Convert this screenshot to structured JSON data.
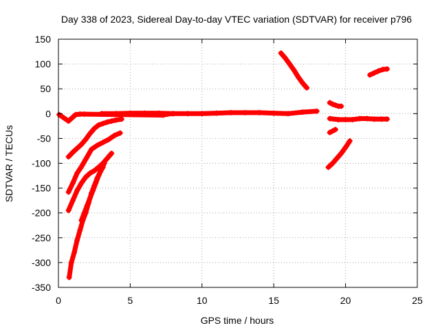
{
  "chart_data": {
    "type": "scatter",
    "title": "Day 338 of 2023, Sidereal Day-to-day VTEC variation (SDTVAR) for receiver p796",
    "xlabel": "GPS time / hours",
    "ylabel": "SDTVAR / TECUs",
    "xlim": [
      0,
      25
    ],
    "ylim": [
      -350,
      150
    ],
    "xticks": [
      0,
      5,
      10,
      15,
      20,
      25
    ],
    "yticks": [
      -350,
      -300,
      -250,
      -200,
      -150,
      -100,
      -50,
      0,
      50,
      100,
      150
    ],
    "grid": true,
    "marker": "+",
    "color": "#ff0000",
    "series": [
      {
        "name": "arc-near-zero-main",
        "x": [
          3.0,
          4.0,
          5.0,
          6.0,
          7.0,
          8.0,
          9.0,
          10.0,
          11.0,
          12.0,
          13.0,
          14.0,
          15.0,
          16.0,
          17.0,
          18.0
        ],
        "y": [
          0,
          0,
          1,
          1,
          1,
          0,
          0,
          0,
          1,
          2,
          2,
          2,
          1,
          0,
          3,
          5
        ]
      },
      {
        "name": "arc-near-zero-late",
        "x": [
          18.9,
          19.5,
          20.0,
          20.5,
          21.0,
          21.5,
          22.0,
          22.5,
          22.9
        ],
        "y": [
          -10,
          -12,
          -12,
          -12,
          -10,
          -10,
          -11,
          -11,
          -11
        ]
      },
      {
        "name": "arc-rise-1",
        "x": [
          0.7,
          1.0,
          1.3,
          1.6,
          1.9,
          2.2,
          2.5,
          2.8,
          3.1,
          3.4,
          3.7,
          4.0,
          4.4
        ],
        "y": [
          -87,
          -78,
          -70,
          -62,
          -52,
          -40,
          -30,
          -23,
          -20,
          -17,
          -15,
          -13,
          -11
        ]
      },
      {
        "name": "arc-rise-2",
        "x": [
          0.7,
          1.0,
          1.3,
          1.6,
          1.9,
          2.3,
          2.7,
          3.1,
          3.5,
          3.9,
          4.3
        ],
        "y": [
          -158,
          -140,
          -120,
          -107,
          -92,
          -72,
          -64,
          -58,
          -52,
          -44,
          -39
        ]
      },
      {
        "name": "arc-rise-3",
        "x": [
          0.7,
          1.0,
          1.3,
          1.6,
          1.9,
          2.2,
          2.5,
          2.8,
          3.1,
          3.4,
          3.7
        ],
        "y": [
          -195,
          -175,
          -155,
          -140,
          -128,
          -120,
          -115,
          -108,
          -100,
          -90,
          -80
        ]
      },
      {
        "name": "arc-rise-4",
        "x": [
          0.75,
          0.9,
          1.1,
          1.3,
          1.5,
          1.7,
          1.9,
          2.1,
          2.3,
          2.5,
          2.7,
          2.9,
          3.1
        ],
        "y": [
          -330,
          -300,
          -280,
          -255,
          -235,
          -215,
          -200,
          -180,
          -160,
          -145,
          -130,
          -118,
          -108
        ]
      },
      {
        "name": "arc-rise-5",
        "x": [
          1.6,
          1.8,
          2.0,
          2.2,
          2.4,
          2.6,
          2.8,
          3.0,
          3.2
        ],
        "y": [
          -215,
          -200,
          -185,
          -170,
          -155,
          -140,
          -125,
          -112,
          -100
        ]
      },
      {
        "name": "arc-high-fall",
        "x": [
          15.5,
          15.8,
          16.1,
          16.4,
          16.7,
          17.0,
          17.3
        ],
        "y": [
          122,
          112,
          100,
          88,
          74,
          62,
          52
        ]
      },
      {
        "name": "arc-mid-19",
        "x": [
          18.9,
          19.1,
          19.3,
          19.5,
          19.7
        ],
        "y": [
          22,
          19,
          17,
          15,
          15
        ]
      },
      {
        "name": "arc-low-19",
        "x": [
          18.8,
          19.1,
          19.4,
          19.7,
          20.0,
          20.3
        ],
        "y": [
          -108,
          -100,
          -90,
          -80,
          -68,
          -55
        ]
      },
      {
        "name": "arc-short-19",
        "x": [
          18.9,
          19.1,
          19.3
        ],
        "y": [
          -38,
          -35,
          -32
        ]
      },
      {
        "name": "arc-late-rise",
        "x": [
          21.7,
          22.0,
          22.3,
          22.6,
          22.9
        ],
        "y": [
          78,
          82,
          86,
          89,
          90
        ]
      },
      {
        "name": "scatter-singles",
        "x": [
          0.05,
          0.7,
          1.2,
          1.5,
          1.8,
          7.3,
          7.6,
          8.0
        ],
        "y": [
          -2,
          -15,
          -2,
          -1,
          -1,
          -3,
          -1,
          0
        ]
      }
    ]
  }
}
